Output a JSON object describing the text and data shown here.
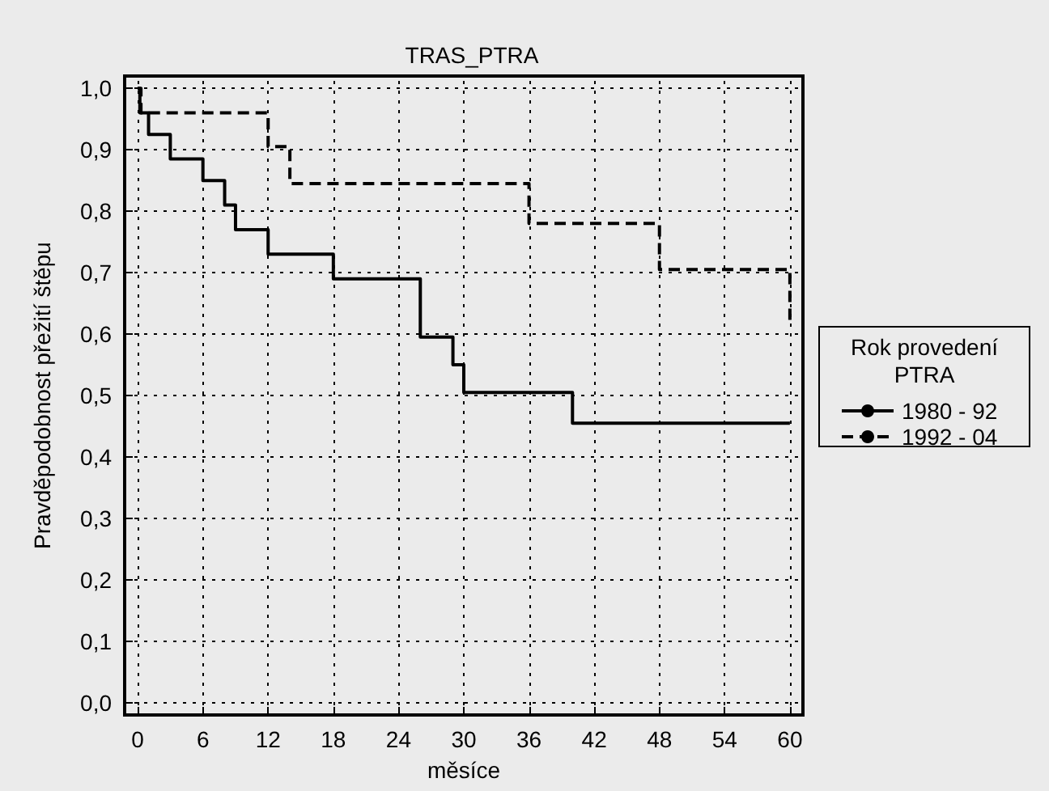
{
  "chart_data": {
    "type": "step",
    "title": "TRAS_PTRA",
    "xlabel": "měsíce",
    "ylabel": "Pravděpodobnost přežití štěpu",
    "legend_title": "Rok provedení PTRA",
    "series": [
      {
        "name": "1980 - 92",
        "color": "#000000",
        "line_style": "solid",
        "x": [
          0,
          0.2,
          1,
          3,
          6,
          8,
          9,
          12,
          18,
          26,
          29,
          30,
          40,
          60
        ],
        "values": [
          1,
          0.96,
          0.925,
          0.885,
          0.85,
          0.81,
          0.77,
          0.73,
          0.69,
          0.595,
          0.55,
          0.505,
          0.455,
          0.455
        ]
      },
      {
        "name": "1992 - 04",
        "color": "#000000",
        "line_style": "dashed",
        "x": [
          0,
          0.3,
          12,
          14,
          36,
          48,
          60,
          60
        ],
        "values": [
          1,
          0.96,
          0.905,
          0.845,
          0.78,
          0.705,
          0.705,
          0.615
        ]
      }
    ],
    "xlim": [
      -1.2,
      61.2
    ],
    "xticks": [
      0,
      6,
      12,
      18,
      24,
      30,
      36,
      42,
      48,
      54,
      60
    ],
    "ylim": [
      -0.02,
      1.02
    ],
    "yticks": [
      {
        "value": 0,
        "label": "0,0"
      },
      {
        "value": 0.1,
        "label": "0,1"
      },
      {
        "value": 0.2,
        "label": "0,2"
      },
      {
        "value": 0.3,
        "label": "0,3"
      },
      {
        "value": 0.4,
        "label": "0,4"
      },
      {
        "value": 0.5,
        "label": "0,5"
      },
      {
        "value": 0.6,
        "label": "0,6"
      },
      {
        "value": 0.7,
        "label": "0,7"
      },
      {
        "value": 0.8,
        "label": "0,8"
      },
      {
        "value": 0.9,
        "label": "0,9"
      },
      {
        "value": 1,
        "label": "1,0"
      }
    ],
    "grid": true,
    "legend": "right",
    "marker": "none"
  }
}
